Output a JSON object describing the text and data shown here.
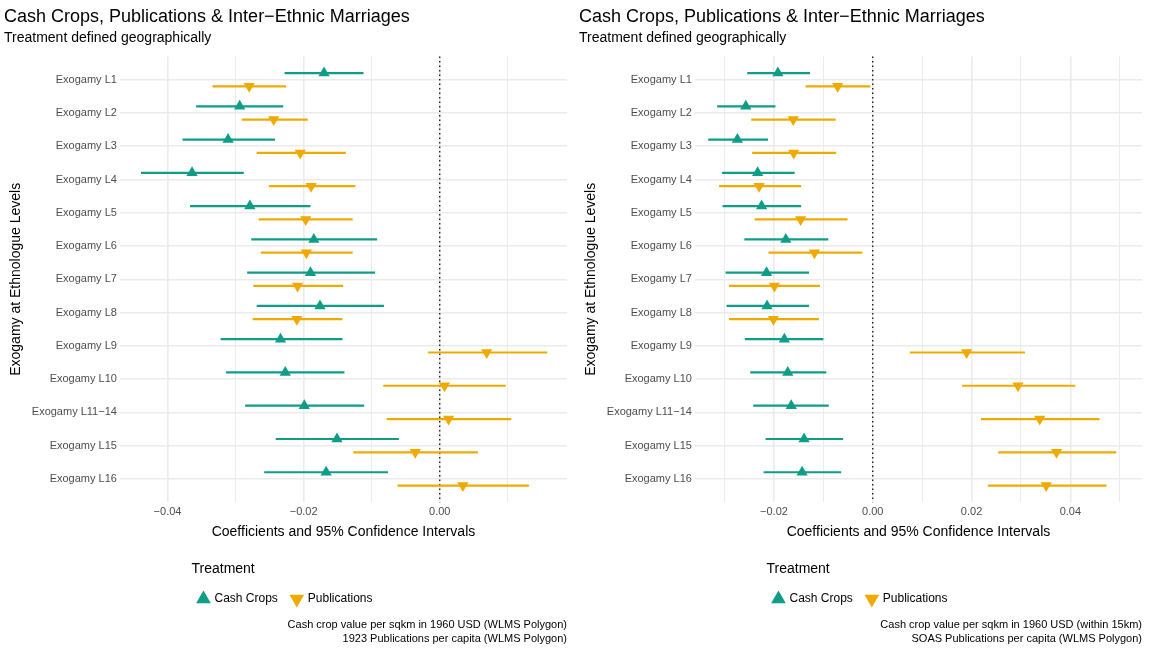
{
  "chart_data": [
    {
      "type": "scatter",
      "orientation": "horizontal",
      "title": "Cash Crops, Publications & Inter−Ethnic Marriages",
      "subtitle": "Treatment defined geographically",
      "xlabel": "Coefficients and 95% Confidence Intervals",
      "ylabel": "Exogamy at Ethnologue Levels",
      "legend_title": "Treatment",
      "legend": "bottom",
      "grid": true,
      "categories": [
        "Exogamy L1",
        "Exogamy L2",
        "Exogamy L3",
        "Exogamy L4",
        "Exogamy L5",
        "Exogamy L6",
        "Exogamy L7",
        "Exogamy L8",
        "Exogamy L9",
        "Exogamy L10",
        "Exogamy L11−14",
        "Exogamy L15",
        "Exogamy L16"
      ],
      "xlim": [
        -0.047,
        0.0187
      ],
      "xticks": [
        {
          "value": -0.04,
          "label": "−0.04"
        },
        {
          "value": -0.03,
          "label": null
        },
        {
          "value": -0.02,
          "label": "−0.02"
        },
        {
          "value": -0.01,
          "label": null
        },
        {
          "value": 0,
          "label": "0.00"
        },
        {
          "value": 0.01,
          "label": null
        }
      ],
      "ref_lines": [
        {
          "axis": "x",
          "value": 0,
          "line_style": "dotted"
        }
      ],
      "series": [
        {
          "name": "Cash Crops",
          "color": "#0f9d87",
          "marker": "triangle",
          "values": [
            -0.017,
            -0.0294,
            -0.0311,
            -0.0364,
            -0.0279,
            -0.0185,
            -0.019,
            -0.0176,
            -0.0234,
            -0.0227,
            -0.0199,
            -0.0151,
            -0.0167
          ],
          "errors": [
            [
              -0.0228,
              -0.0112
            ],
            [
              -0.0358,
              -0.023
            ],
            [
              -0.0378,
              -0.0242
            ],
            [
              -0.0439,
              -0.0288
            ],
            [
              -0.0367,
              -0.019
            ],
            [
              -0.0277,
              -0.0092
            ],
            [
              -0.0283,
              -0.0095
            ],
            [
              -0.0269,
              -0.0082
            ],
            [
              -0.0322,
              -0.0143
            ],
            [
              -0.0314,
              -0.014
            ],
            [
              -0.0286,
              -0.0111
            ],
            [
              -0.0241,
              -0.006
            ],
            [
              -0.0258,
              -0.0076
            ]
          ]
        },
        {
          "name": "Publications",
          "color": "#efaa00",
          "marker": "triangle-down",
          "values": [
            -0.028,
            -0.0244,
            -0.0205,
            -0.0189,
            -0.0197,
            -0.0196,
            -0.0209,
            -0.021,
            0.0069,
            0.0007,
            0.0013,
            -0.0036,
            0.0034
          ],
          "errors": [
            [
              -0.0334,
              -0.0226
            ],
            [
              -0.0291,
              -0.0194
            ],
            [
              -0.0269,
              -0.0138
            ],
            [
              -0.0251,
              -0.0124
            ],
            [
              -0.0266,
              -0.0128
            ],
            [
              -0.0263,
              -0.0128
            ],
            [
              -0.0274,
              -0.0142
            ],
            [
              -0.0275,
              -0.0143
            ],
            [
              -0.0017,
              0.0158
            ],
            [
              -0.0083,
              0.0097
            ],
            [
              -0.0078,
              0.0105
            ],
            [
              -0.0127,
              0.0056
            ],
            [
              -0.0062,
              0.0131
            ]
          ]
        }
      ],
      "annotations": [
        "Cash crop value per sqkm in 1960 USD (WLMS Polygon)",
        "1923 Publications per capita (WLMS Polygon)"
      ]
    },
    {
      "type": "scatter",
      "orientation": "horizontal",
      "title": "Cash Crops, Publications & Inter−Ethnic Marriages",
      "subtitle": "Treatment defined geographically",
      "xlabel": "Coefficients and 95% Confidence Intervals",
      "ylabel": "Exogamy at Ethnologue Levels",
      "legend_title": "Treatment",
      "legend": "bottom",
      "grid": true,
      "categories": [
        "Exogamy L1",
        "Exogamy L2",
        "Exogamy L3",
        "Exogamy L4",
        "Exogamy L5",
        "Exogamy L6",
        "Exogamy L7",
        "Exogamy L8",
        "Exogamy L9",
        "Exogamy L10",
        "Exogamy L11−14",
        "Exogamy L15",
        "Exogamy L16"
      ],
      "xlim": [
        -0.036,
        0.0545
      ],
      "xticks": [
        {
          "value": -0.03,
          "label": null
        },
        {
          "value": -0.02,
          "label": "−0.02"
        },
        {
          "value": -0.01,
          "label": null
        },
        {
          "value": 0,
          "label": "0.00"
        },
        {
          "value": 0.01,
          "label": null
        },
        {
          "value": 0.02,
          "label": "0.02"
        },
        {
          "value": 0.03,
          "label": null
        },
        {
          "value": 0.04,
          "label": "0.04"
        },
        {
          "value": 0.05,
          "label": null
        }
      ],
      "ref_lines": [
        {
          "axis": "x",
          "value": 0,
          "line_style": "dotted"
        }
      ],
      "series": [
        {
          "name": "Cash Crops",
          "color": "#0f9d87",
          "marker": "triangle",
          "values": [
            -0.0192,
            -0.0257,
            -0.0274,
            -0.0233,
            -0.0225,
            -0.0176,
            -0.0215,
            -0.0214,
            -0.0179,
            -0.0172,
            -0.0165,
            -0.0139,
            -0.0143
          ],
          "errors": [
            [
              -0.0254,
              -0.0127
            ],
            [
              -0.0315,
              -0.0197
            ],
            [
              -0.0333,
              -0.0212
            ],
            [
              -0.0305,
              -0.0158
            ],
            [
              -0.0304,
              -0.0145
            ],
            [
              -0.026,
              -0.009
            ],
            [
              -0.0298,
              -0.0129
            ],
            [
              -0.0296,
              -0.0129
            ],
            [
              -0.0259,
              -0.01
            ],
            [
              -0.0248,
              -0.0094
            ],
            [
              -0.0242,
              -0.0089
            ],
            [
              -0.0217,
              -0.006
            ],
            [
              -0.0221,
              -0.0064
            ]
          ]
        },
        {
          "name": "Publications",
          "color": "#efaa00",
          "marker": "triangle-down",
          "values": [
            -0.0071,
            -0.0161,
            -0.016,
            -0.023,
            -0.0146,
            -0.0118,
            -0.0199,
            -0.0201,
            0.019,
            0.0294,
            0.0338,
            0.0372,
            0.0351
          ],
          "errors": [
            [
              -0.0136,
              -0.0005
            ],
            [
              -0.0246,
              -0.0075
            ],
            [
              -0.0244,
              -0.0074
            ],
            [
              -0.0311,
              -0.0145
            ],
            [
              -0.0239,
              -0.0051
            ],
            [
              -0.0211,
              -0.0021
            ],
            [
              -0.0291,
              -0.0107
            ],
            [
              -0.0291,
              -0.0109
            ],
            [
              0.0075,
              0.0308
            ],
            [
              0.0181,
              0.041
            ],
            [
              0.0219,
              0.0459
            ],
            [
              0.0254,
              0.0493
            ],
            [
              0.0233,
              0.0473
            ]
          ]
        }
      ],
      "annotations": [
        "Cash crop value per sqkm in 1960 USD (within 15km)",
        "SOAS Publications per capita (WLMS Polygon)"
      ]
    }
  ]
}
